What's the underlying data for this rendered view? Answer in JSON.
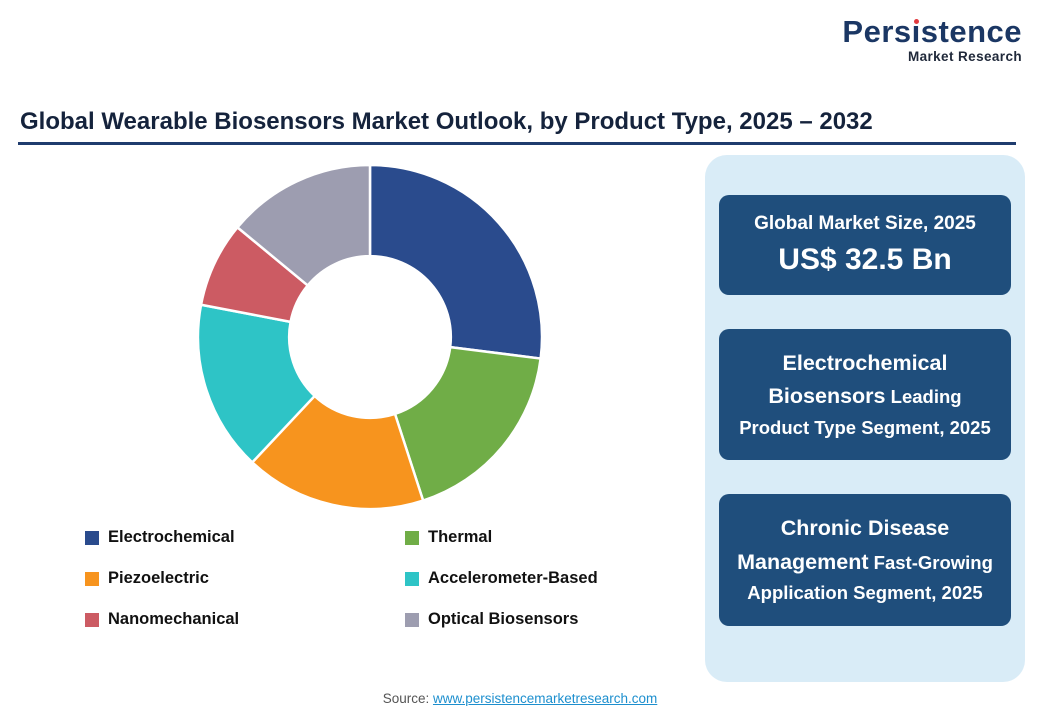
{
  "logo": {
    "part1": "Pers",
    "dotless_i": "ı",
    "part2": "stence",
    "subtitle": "Market Research"
  },
  "title": "Global Wearable Biosensors Market Outlook, by Product Type, 2025 – 2032",
  "chart_data": {
    "type": "pie",
    "subtype": "donut",
    "title": "Global Wearable Biosensors Market Outlook, by Product Type, 2025 – 2032",
    "categories": [
      "Electrochemical",
      "Thermal",
      "Piezoelectric",
      "Accelerometer-Based",
      "Nanomechanical",
      "Optical Biosensors"
    ],
    "values": [
      27,
      18,
      17,
      16,
      8,
      14
    ],
    "colors": [
      "#2a4b8d",
      "#70ad47",
      "#f7941e",
      "#2ec4c6",
      "#cc5b63",
      "#9d9db0"
    ],
    "start_angle_deg": 0,
    "inner_radius_ratio": 0.47,
    "legend_position": "bottom",
    "data_labels": "none"
  },
  "panel": {
    "cards": [
      {
        "line1": "Global Market Size, 2025",
        "line2": "US$ 32.5 Bn"
      },
      {
        "highlight": "Electrochemical Biosensors",
        "rest": "Leading Product Type Segment, 2025"
      },
      {
        "highlight": "Chronic Disease Management",
        "rest": "Fast-Growing Application Segment, 2025"
      }
    ]
  },
  "footer": {
    "label": "Source: ",
    "link": "www.persistencemarketresearch.com"
  }
}
